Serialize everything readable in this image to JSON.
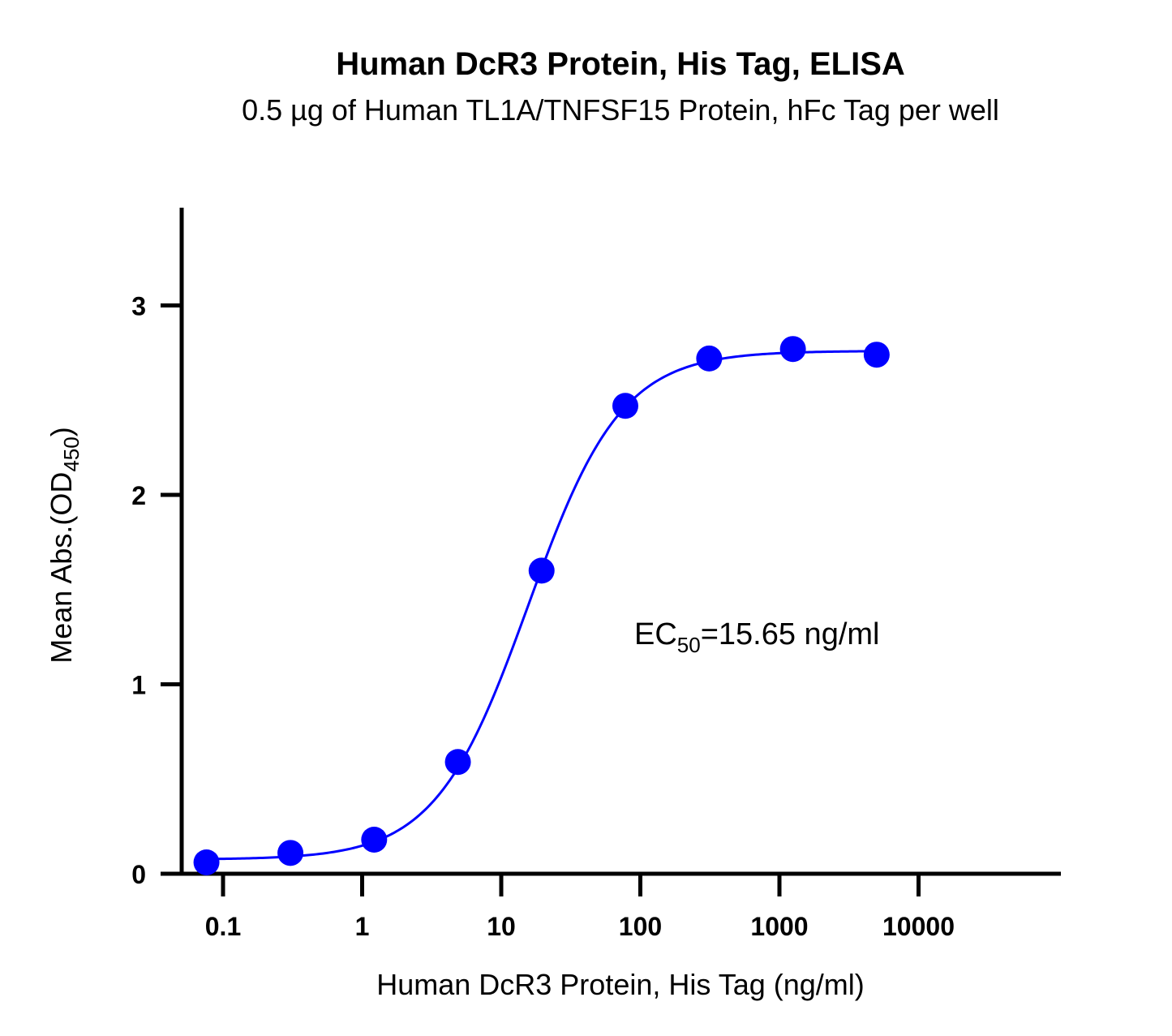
{
  "chart_data": {
    "type": "scatter",
    "title": "Human DcR3 Protein, His Tag, ELISA",
    "subtitle": "0.5 µg of Human TL1A/TNFSF15 Protein, hFc Tag per well",
    "xlabel": "Human DcR3 Protein, His Tag (ng/ml)",
    "ylabel": {
      "main": "Mean Abs.(OD",
      "sub": "450",
      "end": ")"
    },
    "xscale": "log",
    "xlim": [
      0.04,
      80000
    ],
    "ylim": [
      0,
      3.5
    ],
    "x_ticks": [
      0.1,
      1,
      10,
      100,
      1000,
      10000
    ],
    "x_tick_labels": [
      "0.1",
      "1",
      "10",
      "100",
      "1000",
      "10000"
    ],
    "y_ticks": [
      0,
      1,
      2,
      3
    ],
    "y_tick_labels": [
      "0",
      "1",
      "2",
      "3"
    ],
    "grid": false,
    "series": [
      {
        "x": [
          0.076,
          0.305,
          1.22,
          4.88,
          19.5,
          78,
          312.5,
          1250,
          5000
        ],
        "y": [
          0.06,
          0.11,
          0.18,
          0.59,
          1.6,
          2.47,
          2.72,
          2.77,
          2.74
        ],
        "color": "#0000ff"
      }
    ],
    "fit": {
      "model": "4PL",
      "bottom": 0.075,
      "top": 2.76,
      "ec50": 15.65,
      "hill": 1.3,
      "color": "#0000ff"
    },
    "annotation": {
      "main": "EC",
      "sub": "50",
      "end": "=15.65 ng/ml"
    }
  }
}
